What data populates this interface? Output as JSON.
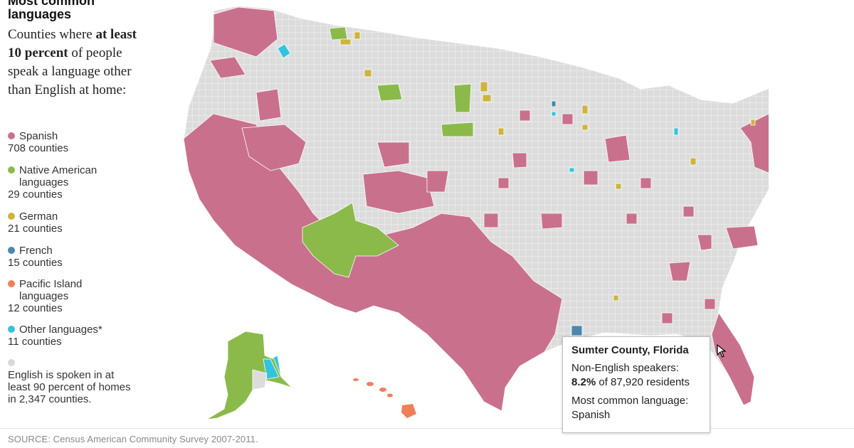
{
  "title": "Most common languages",
  "intro": {
    "prefix": "Counties where ",
    "bold": "at least 10 percent",
    "suffix": " of people speak a language other than English at home:"
  },
  "legend": [
    {
      "label": "Spanish",
      "count": "708 counties",
      "color": "#c9718c"
    },
    {
      "label": "Native American languages",
      "count": "29 counties",
      "color": "#8bba4a"
    },
    {
      "label": "German",
      "count": "21 counties",
      "color": "#cdb43d"
    },
    {
      "label": "French",
      "count": "15 counties",
      "color": "#4b88ad"
    },
    {
      "label": "Pacific Island languages",
      "count": "12 counties",
      "color": "#ef7f5a"
    },
    {
      "label": "Other languages*",
      "count": "11 counties",
      "color": "#33c4dd"
    },
    {
      "label": "English is spoken in at least 90 percent of homes in 2,347 counties.",
      "count": "",
      "color": "#d9d9d9"
    }
  ],
  "colors": {
    "base": "#dcdcdc",
    "border": "#ffffff"
  },
  "tooltip": {
    "county": "Sumter County, Florida",
    "line1": "Non-English speakers:",
    "pct": "8.2%",
    "residents": " of 87,920 residents",
    "line3": "Most common language:",
    "language": "Spanish"
  },
  "source": "SOURCE: Census American Community Survey 2007-2011."
}
